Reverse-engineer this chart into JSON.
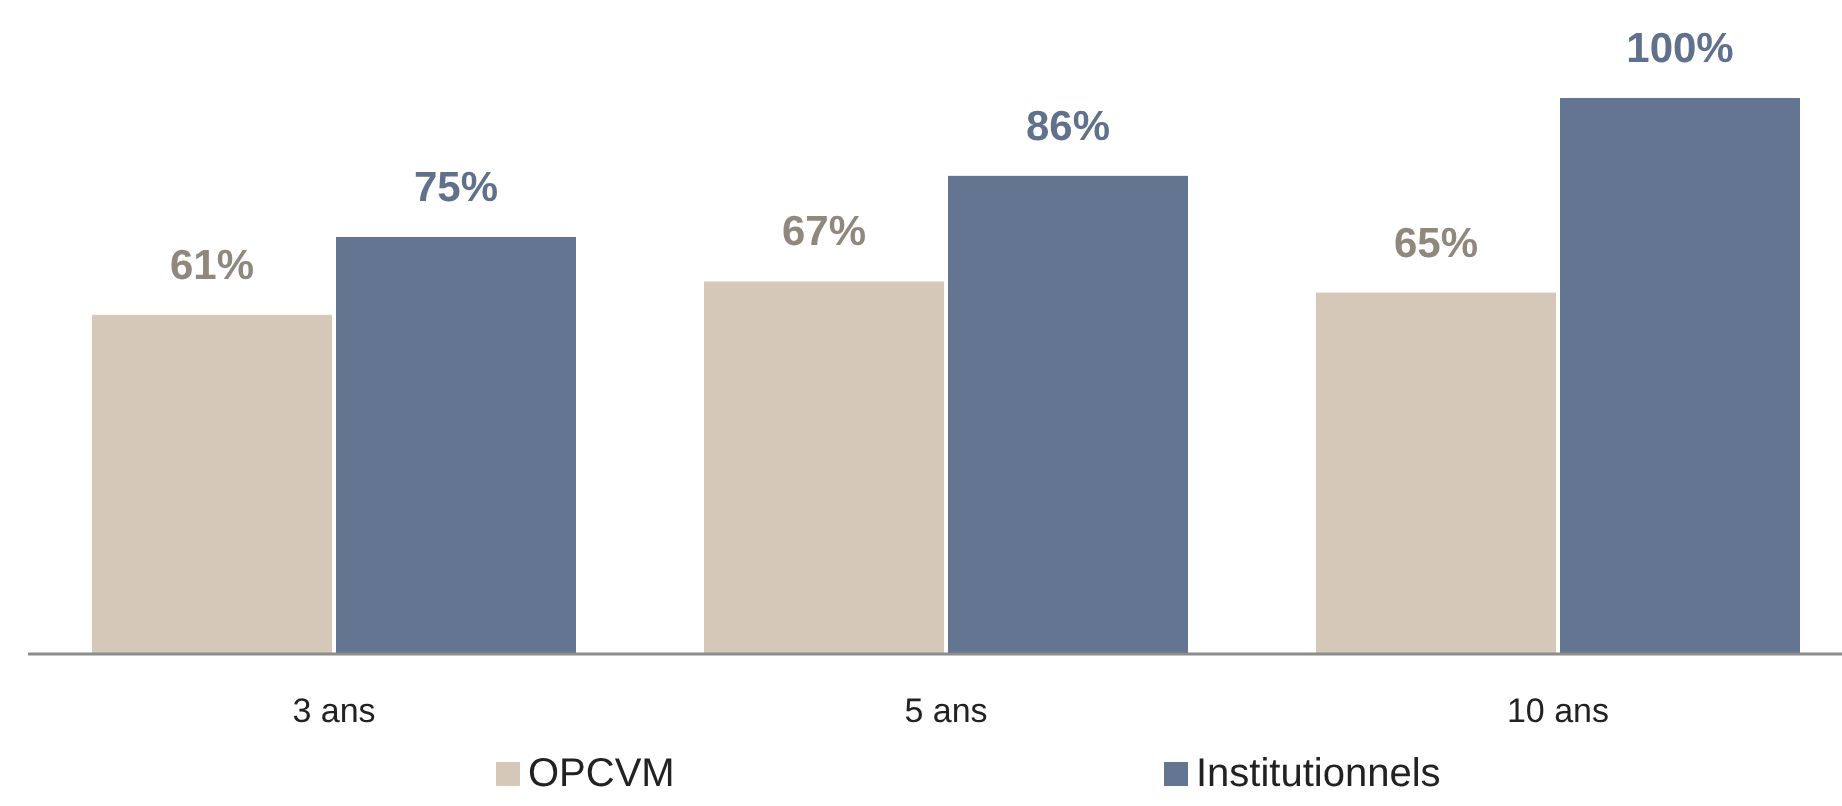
{
  "chart_data": {
    "type": "bar",
    "categories": [
      "3 ans",
      "5 ans",
      "10 ans"
    ],
    "series": [
      {
        "name": "OPCVM",
        "color": "#d5c8b9",
        "values": [
          61,
          67,
          65
        ],
        "value_labels": [
          "61%",
          "67%",
          "65%"
        ]
      },
      {
        "name": "Institutionnels",
        "color": "#647591",
        "values": [
          75,
          86,
          100
        ],
        "value_labels": [
          "75%",
          "86%",
          "100%"
        ]
      }
    ],
    "relative": false,
    "legend": "bottom"
  }
}
